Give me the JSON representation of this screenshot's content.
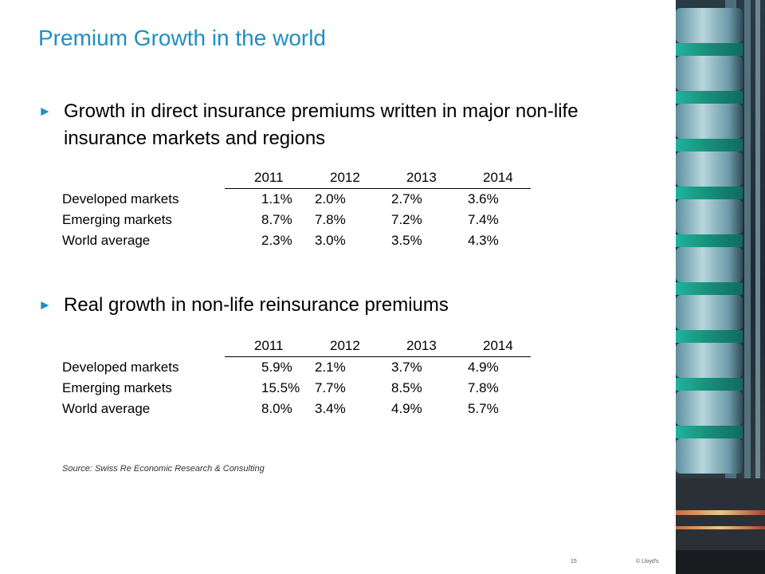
{
  "slide": {
    "title": "Premium Growth in the world",
    "page_number": "15",
    "copyright": "© Lloyd's"
  },
  "bullets": [
    {
      "text": "Growth in direct insurance premiums written in major non-life insurance markets and regions",
      "table": {
        "years": [
          "2011",
          "2012",
          "2013",
          "2014"
        ],
        "rows": [
          {
            "label": "Developed markets",
            "values": [
              "1.1%",
              "2.0%",
              "2.7%",
              "3.6%"
            ]
          },
          {
            "label": "Emerging markets",
            "values": [
              "8.7%",
              "7.8%",
              "7.2%",
              "7.4%"
            ]
          },
          {
            "label": "World  average",
            "values": [
              "2.3%",
              "3.0%",
              "3.5%",
              "4.3%"
            ]
          }
        ]
      }
    },
    {
      "text": "Real growth in non-life reinsurance premiums",
      "table": {
        "years": [
          "2011",
          "2012",
          "2013",
          "2014"
        ],
        "rows": [
          {
            "label": "Developed markets",
            "values": [
              "5.9%",
              "2.1%",
              "3.7%",
              "4.9%"
            ]
          },
          {
            "label": "Emerging markets",
            "values": [
              "15.5%",
              "7.7%",
              "8.5%",
              "7.8%"
            ]
          },
          {
            "label": "World  average",
            "values": [
              "8.0%",
              "3.4%",
              "4.9%",
              "5.7%"
            ]
          }
        ]
      }
    }
  ],
  "source": "Source: Swiss Re Economic Research & Consulting",
  "icons": {
    "bullet": "triangle-right-icon"
  },
  "colors": {
    "accent": "#1f8fc4",
    "text": "#000000"
  }
}
